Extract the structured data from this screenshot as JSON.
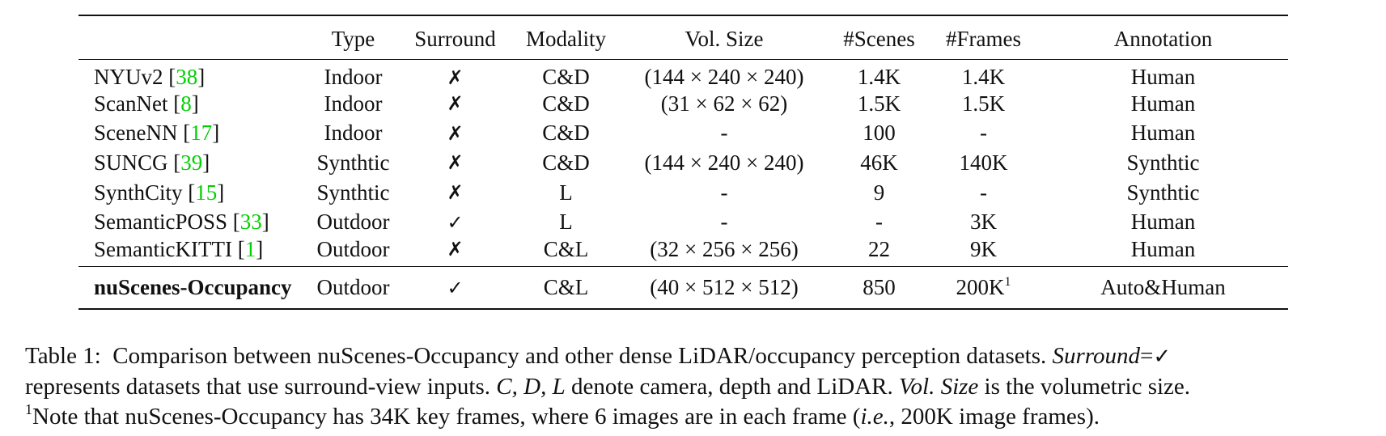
{
  "table": {
    "headers": [
      "",
      "Type",
      "Surround",
      "Modality",
      "Vol. Size",
      "#Scenes",
      "#Frames",
      "Annotation"
    ],
    "rows": [
      {
        "name": "NYUv2",
        "cite": "38",
        "type": "Indoor",
        "surround": "✗",
        "modality": "C&D",
        "vol_size": "(144 × 240 × 240)",
        "scenes": "1.4K",
        "frames": "1.4K",
        "annotation": "Human"
      },
      {
        "name": "ScanNet",
        "cite": "8",
        "type": "Indoor",
        "surround": "✗",
        "modality": "C&D",
        "vol_size": "(31 × 62 × 62)",
        "scenes": "1.5K",
        "frames": "1.5K",
        "annotation": "Human"
      },
      {
        "name": "SceneNN",
        "cite": "17",
        "type": "Indoor",
        "surround": "✗",
        "modality": "C&D",
        "vol_size": "-",
        "scenes": "100",
        "frames": "-",
        "annotation": "Human"
      },
      {
        "name": "SUNCG",
        "cite": "39",
        "type": "Synthtic",
        "surround": "✗",
        "modality": "C&D",
        "vol_size": "(144 × 240 × 240)",
        "scenes": "46K",
        "frames": "140K",
        "annotation": "Synthtic"
      },
      {
        "name": "SynthCity",
        "cite": "15",
        "type": "Synthtic",
        "surround": "✗",
        "modality": "L",
        "vol_size": "-",
        "scenes": "9",
        "frames": "-",
        "annotation": "Synthtic"
      },
      {
        "name": "SemanticPOSS",
        "cite": "33",
        "type": "Outdoor",
        "surround": "✓",
        "modality": "L",
        "vol_size": "-",
        "scenes": "-",
        "frames": "3K",
        "annotation": "Human"
      },
      {
        "name": "SemanticKITTI",
        "cite": "1",
        "type": "Outdoor",
        "surround": "✗",
        "modality": "C&L",
        "vol_size": "(32 × 256 × 256)",
        "scenes": "22",
        "frames": "9K",
        "annotation": "Human"
      }
    ],
    "highlight_row": {
      "name": "nuScenes-Occupancy",
      "type": "Outdoor",
      "surround": "✓",
      "modality": "C&L",
      "vol_size": "(40 × 512 × 512)",
      "scenes": "850",
      "frames": "200K",
      "frames_sup": "1",
      "annotation": "Auto&Human"
    }
  },
  "caption": {
    "label": "Table 1:",
    "line1_text": "Comparison between nuScenes-Occupancy and other dense LiDAR/occupancy perception datasets.",
    "line1_em": "Surround",
    "line1_eq": "=",
    "line1_mark": "✓",
    "line2_text1": "represents datasets that use surround-view inputs.",
    "line2_em1": "C, D, L",
    "line2_text2": "denote camera, depth and LiDAR.",
    "line2_em2": "Vol. Size",
    "line2_text3": "is the volumetric size.",
    "note_sup": "1",
    "line3_text1": "Note that nuScenes-Occupancy has 34K key frames, where 6 images are in each frame (",
    "line3_em": "i.e.",
    "line3_text2": ", 200K image frames)."
  },
  "colors": {
    "citation": "#00d000",
    "text": "#111111"
  }
}
